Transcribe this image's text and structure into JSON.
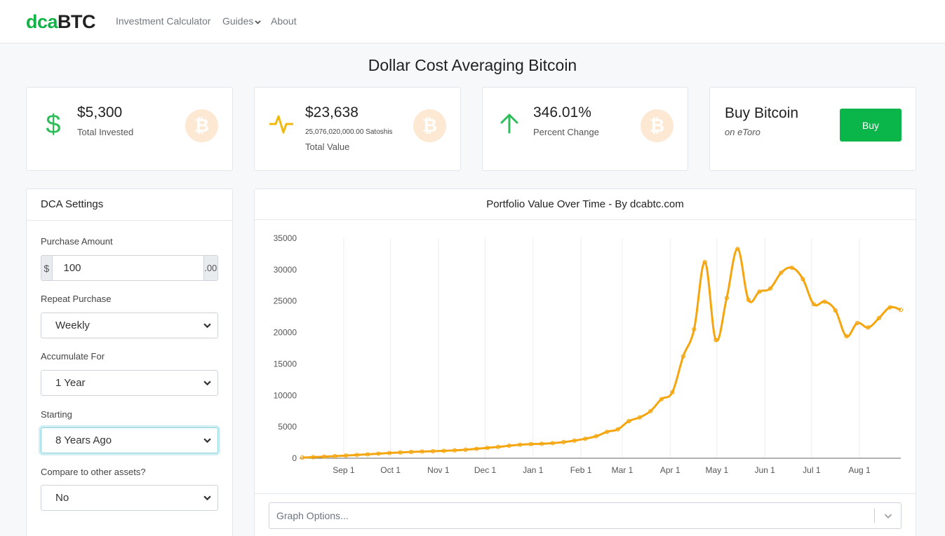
{
  "nav": {
    "brand_part1": "dca",
    "brand_part2": "BTC",
    "links": [
      "Investment Calculator",
      "Guides",
      "About"
    ]
  },
  "page_title": "Dollar Cost Averaging Bitcoin",
  "stats": {
    "invested": {
      "value": "$5,300",
      "label": "Total Invested"
    },
    "total": {
      "value": "$23,638",
      "sub": "25,076,020,000.00 Satoshis",
      "label": "Total Value"
    },
    "change": {
      "value": "346.01%",
      "label": "Percent Change"
    },
    "buy": {
      "title": "Buy Bitcoin",
      "sub": "on eToro",
      "button": "Buy"
    }
  },
  "btc_symbol": "₿",
  "settings": {
    "title": "DCA Settings",
    "purchase_amount_label": "Purchase Amount",
    "currency_prefix": "$",
    "purchase_amount_value": "100",
    "cents_suffix": ".00",
    "repeat_label": "Repeat Purchase",
    "repeat_value": "Weekly",
    "accumulate_label": "Accumulate For",
    "accumulate_value": "1 Year",
    "starting_label": "Starting",
    "starting_value": "8 Years Ago",
    "compare_label": "Compare to other assets?",
    "compare_value": "No"
  },
  "graph_options_placeholder": "Graph Options...",
  "colors": {
    "accent_green": "#0ab64a",
    "line": "#f5a50d",
    "btc_badge": "#fde8d4"
  },
  "chart_data": {
    "type": "line",
    "title": "Portfolio Value Over Time - By dcabtc.com",
    "ylim": [
      0,
      35000
    ],
    "yticks": [
      0,
      5000,
      10000,
      15000,
      20000,
      25000,
      30000,
      35000
    ],
    "xtick_labels": [
      "Sep 1",
      "Oct 1",
      "Nov 1",
      "Dec 1",
      "Jan 1",
      "Feb 1",
      "Mar 1",
      "Apr 1",
      "May 1",
      "Jun 1",
      "Jul 1",
      "Aug 1"
    ],
    "xtick_weeks": [
      3.8,
      8.1,
      12.5,
      16.8,
      21.2,
      25.6,
      29.4,
      33.8,
      38.1,
      42.5,
      46.8,
      51.2
    ],
    "series": [
      {
        "name": "Portfolio Value",
        "values": [
          100,
          180,
          250,
          330,
          420,
          520,
          620,
          730,
          830,
          920,
          1000,
          1060,
          1110,
          1170,
          1250,
          1350,
          1500,
          1650,
          1800,
          1990,
          2150,
          2250,
          2300,
          2400,
          2560,
          2800,
          3100,
          3500,
          4200,
          4600,
          5900,
          6500,
          7500,
          9400,
          10500,
          16200,
          20500,
          31200,
          18800,
          25500,
          33300,
          25200,
          26500,
          27000,
          29500,
          30300,
          28500,
          24500,
          24900,
          23500,
          19400,
          21500,
          20800,
          22300,
          24000,
          23600
        ]
      }
    ]
  }
}
